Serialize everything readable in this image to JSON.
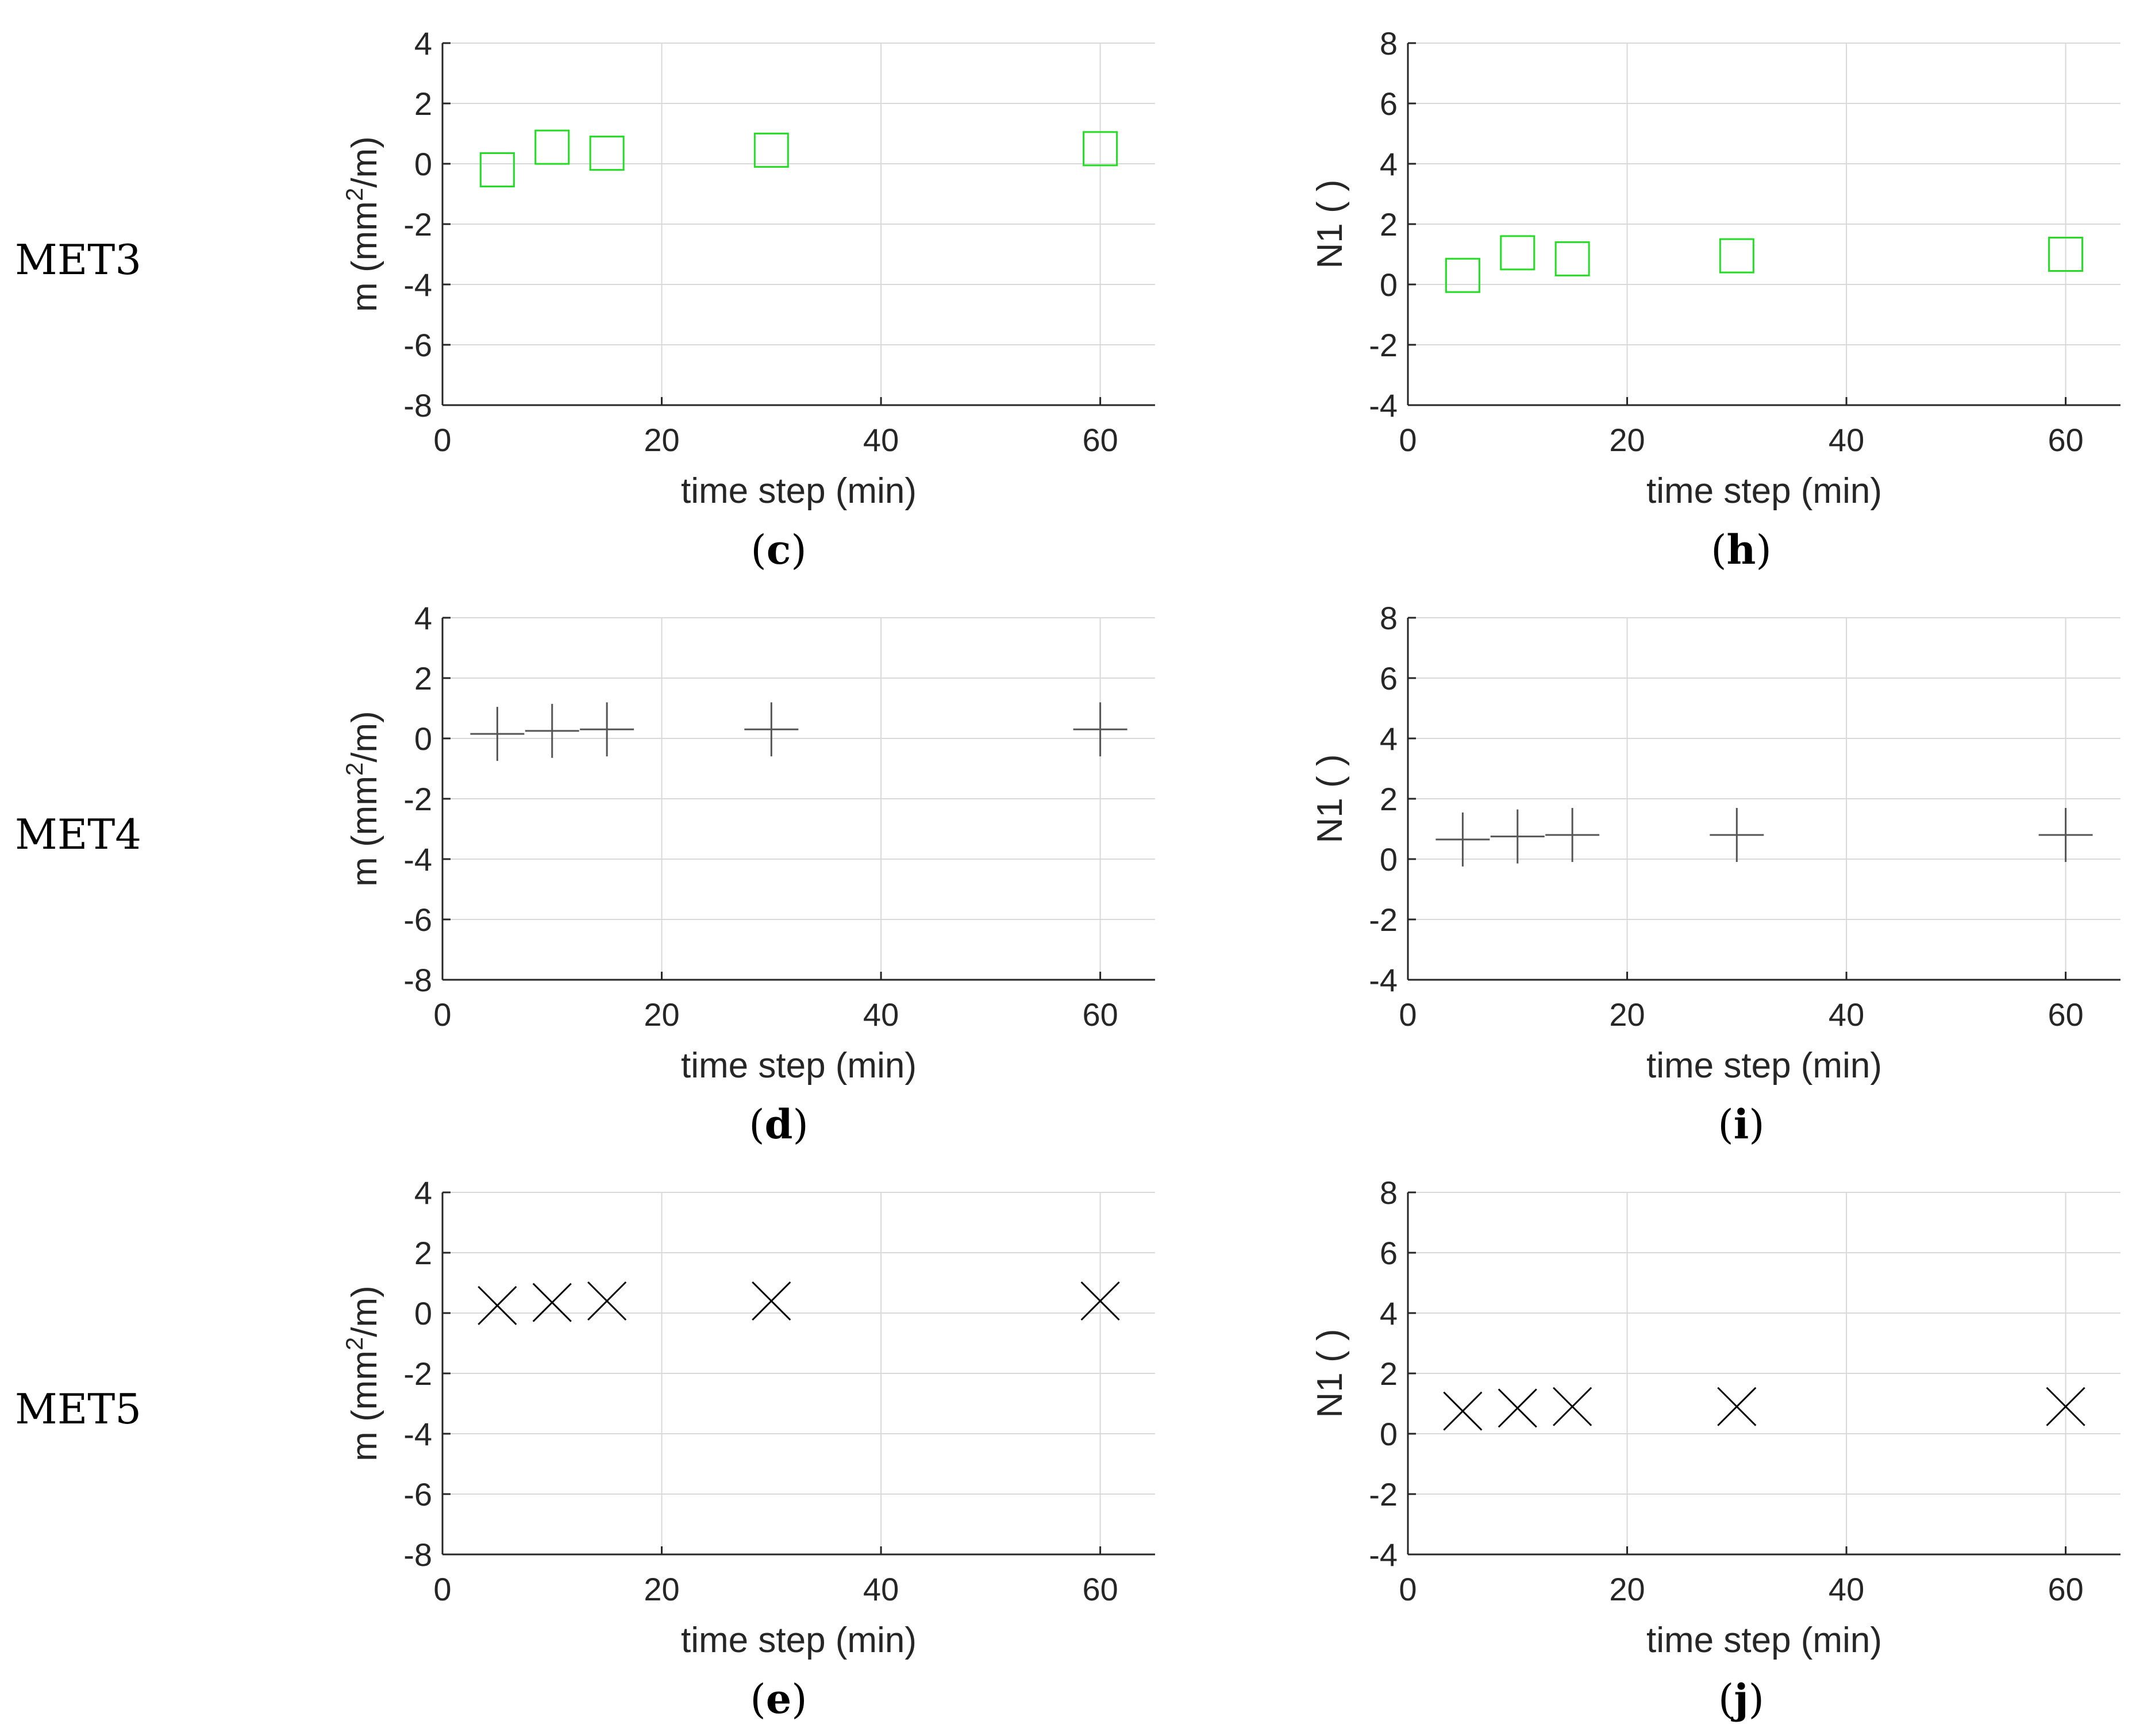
{
  "row_labels": [
    "MET3",
    "MET4",
    "MET5"
  ],
  "colors": {
    "green": "#22dd22",
    "gray": "#555555",
    "black": "#000000",
    "grid": "#d9d9d9",
    "axis": "#262626"
  },
  "chart_data": [
    {
      "id": "c",
      "type": "scatter",
      "marker": "square",
      "color": "#22dd22",
      "panel_label": "c",
      "title": "",
      "xlabel": "time step (min)",
      "ylabel_prefix": "m (mm",
      "ylabel_sup": "2",
      "ylabel_suffix": "/m)",
      "xlim": [
        0,
        65
      ],
      "ylim": [
        -8,
        4
      ],
      "xticks": [
        0,
        20,
        40,
        60
      ],
      "yticks": [
        -8,
        -6,
        -4,
        -2,
        0,
        2,
        4
      ],
      "x": [
        5,
        10,
        15,
        30,
        60
      ],
      "y": [
        -0.2,
        0.55,
        0.35,
        0.45,
        0.5
      ],
      "grid": true
    },
    {
      "id": "h",
      "type": "scatter",
      "marker": "square",
      "color": "#22dd22",
      "panel_label": "h",
      "title": "",
      "xlabel": "time step (min)",
      "ylabel_prefix": "N1 ( )",
      "ylabel_sup": "",
      "ylabel_suffix": "",
      "xlim": [
        0,
        65
      ],
      "ylim": [
        -4,
        8
      ],
      "xticks": [
        0,
        20,
        40,
        60
      ],
      "yticks": [
        -4,
        -2,
        0,
        2,
        4,
        6,
        8
      ],
      "x": [
        5,
        10,
        15,
        30,
        60
      ],
      "y": [
        0.3,
        1.05,
        0.85,
        0.95,
        1.0
      ],
      "grid": true
    },
    {
      "id": "d",
      "type": "scatter",
      "marker": "plus",
      "color": "#555555",
      "panel_label": "d",
      "title": "",
      "xlabel": "time step (min)",
      "ylabel_prefix": "m (mm",
      "ylabel_sup": "2",
      "ylabel_suffix": "/m)",
      "xlim": [
        0,
        65
      ],
      "ylim": [
        -8,
        4
      ],
      "xticks": [
        0,
        20,
        40,
        60
      ],
      "yticks": [
        -8,
        -6,
        -4,
        -2,
        0,
        2,
        4
      ],
      "x": [
        5,
        10,
        15,
        30,
        60
      ],
      "y": [
        0.15,
        0.25,
        0.3,
        0.3,
        0.3
      ],
      "grid": true
    },
    {
      "id": "i",
      "type": "scatter",
      "marker": "plus",
      "color": "#555555",
      "panel_label": "i",
      "title": "",
      "xlabel": "time step (min)",
      "ylabel_prefix": "N1 ( )",
      "ylabel_sup": "",
      "ylabel_suffix": "",
      "xlim": [
        0,
        65
      ],
      "ylim": [
        -4,
        8
      ],
      "xticks": [
        0,
        20,
        40,
        60
      ],
      "yticks": [
        -4,
        -2,
        0,
        2,
        4,
        6,
        8
      ],
      "x": [
        5,
        10,
        15,
        30,
        60
      ],
      "y": [
        0.65,
        0.75,
        0.8,
        0.8,
        0.8
      ],
      "grid": true
    },
    {
      "id": "e",
      "type": "scatter",
      "marker": "cross",
      "color": "#000000",
      "panel_label": "e",
      "title": "",
      "xlabel": "time step (min)",
      "ylabel_prefix": "m (mm",
      "ylabel_sup": "2",
      "ylabel_suffix": "/m)",
      "xlim": [
        0,
        65
      ],
      "ylim": [
        -8,
        4
      ],
      "xticks": [
        0,
        20,
        40,
        60
      ],
      "yticks": [
        -8,
        -6,
        -4,
        -2,
        0,
        2,
        4
      ],
      "x": [
        5,
        10,
        15,
        30,
        60
      ],
      "y": [
        0.25,
        0.35,
        0.4,
        0.4,
        0.4
      ],
      "grid": true
    },
    {
      "id": "j",
      "type": "scatter",
      "marker": "cross",
      "color": "#000000",
      "panel_label": "j",
      "title": "",
      "xlabel": "time step (min)",
      "ylabel_prefix": "N1 ( )",
      "ylabel_sup": "",
      "ylabel_suffix": "",
      "xlim": [
        0,
        65
      ],
      "ylim": [
        -4,
        8
      ],
      "xticks": [
        0,
        20,
        40,
        60
      ],
      "yticks": [
        -4,
        -2,
        0,
        2,
        4,
        6,
        8
      ],
      "x": [
        5,
        10,
        15,
        30,
        60
      ],
      "y": [
        0.75,
        0.85,
        0.9,
        0.9,
        0.9
      ],
      "grid": true
    }
  ]
}
